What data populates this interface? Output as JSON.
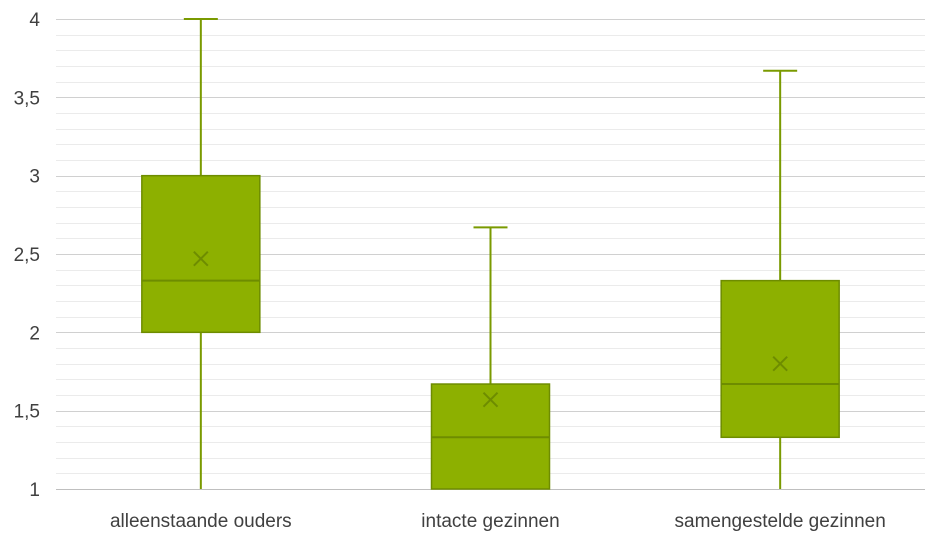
{
  "chart_data": {
    "type": "boxplot",
    "title": "",
    "xlabel": "",
    "ylabel": "",
    "ylim": [
      1,
      4
    ],
    "major_ticks": [
      1,
      1.5,
      2,
      2.5,
      3,
      3.5,
      4
    ],
    "tick_labels": [
      "1",
      "1,5",
      "2",
      "2,5",
      "3",
      "3,5",
      "4"
    ],
    "minor_step": 0.1,
    "grid": true,
    "categories": [
      "alleenstaande ouders",
      "intacte gezinnen",
      "samengestelde gezinnen"
    ],
    "boxes": [
      {
        "min": 1,
        "q1": 2,
        "median": 2.33,
        "q3": 3,
        "max": 4,
        "mean": 2.47
      },
      {
        "min": 1,
        "q1": 1,
        "median": 1.33,
        "q3": 1.67,
        "max": 2.67,
        "mean": 1.57
      },
      {
        "min": 1,
        "q1": 1.33,
        "median": 1.67,
        "q3": 2.33,
        "max": 3.67,
        "mean": 1.8
      }
    ],
    "colors": {
      "box_fill": "#8DB000",
      "box_stroke": "#6E8C00",
      "whisker": "#7A9A00",
      "grid_major": "#D0D0D0",
      "grid_minor": "#EBEBEB",
      "axis": "#BFBFBF",
      "text": "#404040"
    }
  }
}
